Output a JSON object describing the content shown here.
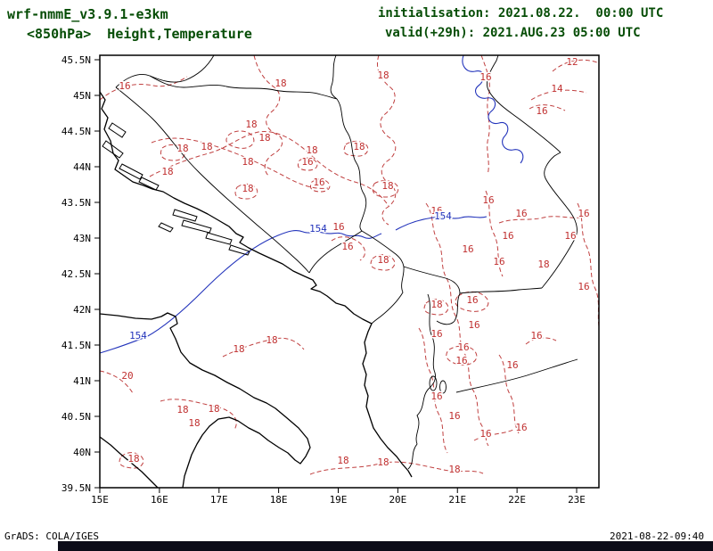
{
  "header": {
    "model_title": "wrf-nmmE_v3.9.1-e3km",
    "field_title": "<850hPa>  Height,Temperature",
    "init_line": "initialisation: 2021.08.22.  00:00 UTC",
    "valid_line": "valid(+29h): 2021.AUG.23 05:00 UTC"
  },
  "footer": {
    "left": "GrADS: COLA/IGES",
    "right": "2021-08-22-09:40"
  },
  "colors": {
    "header_text": "#064d06",
    "temperature_contour": "#c03030",
    "height_contour": "#2233bb",
    "bottom_bar": "#0b0b18"
  },
  "axes": {
    "y_ticks": [
      "45.5N",
      "45N",
      "44.5N",
      "44N",
      "43.5N",
      "43N",
      "42.5N",
      "42N",
      "41.5N",
      "41N",
      "40.5N",
      "40N",
      "39.5N"
    ],
    "x_ticks": [
      "15E",
      "16E",
      "17E",
      "18E",
      "19E",
      "20E",
      "21E",
      "22E",
      "23E"
    ]
  },
  "chart_data": {
    "type": "contour-map",
    "model": "wrf-nmmE_v3.9.1-e3km",
    "field": "850hPa Height and Temperature",
    "init_time": "2021.08.22 00:00 UTC",
    "valid_time": "2021.AUG.23 05:00 UTC (+29h)",
    "lon_range": [
      "15E",
      "23E"
    ],
    "lat_range": [
      "39.5N",
      "45.5N"
    ],
    "temperature_contours": {
      "style": "red dashed",
      "levels_c": [
        12,
        14,
        16,
        18,
        20
      ]
    },
    "height_contours": {
      "style": "blue solid",
      "levels_dam": [
        154
      ]
    },
    "labels": [
      {
        "t": "16",
        "x": 140,
        "y": 100,
        "k": "temp"
      },
      {
        "t": "18",
        "x": 315,
        "y": 97,
        "k": "temp"
      },
      {
        "t": "18",
        "x": 430,
        "y": 88,
        "k": "temp"
      },
      {
        "t": "16",
        "x": 545,
        "y": 90,
        "k": "temp"
      },
      {
        "t": "12",
        "x": 642,
        "y": 73,
        "k": "temp"
      },
      {
        "t": "14",
        "x": 625,
        "y": 103,
        "k": "temp"
      },
      {
        "t": "16",
        "x": 608,
        "y": 128,
        "k": "temp"
      },
      {
        "t": "18",
        "x": 282,
        "y": 143,
        "k": "temp"
      },
      {
        "t": "18",
        "x": 297,
        "y": 158,
        "k": "temp"
      },
      {
        "t": "18",
        "x": 205,
        "y": 170,
        "k": "temp"
      },
      {
        "t": "18",
        "x": 232,
        "y": 168,
        "k": "temp"
      },
      {
        "t": "18",
        "x": 350,
        "y": 172,
        "k": "temp"
      },
      {
        "t": "18",
        "x": 403,
        "y": 168,
        "k": "temp"
      },
      {
        "t": "18",
        "x": 278,
        "y": 185,
        "k": "temp"
      },
      {
        "t": "16",
        "x": 345,
        "y": 185,
        "k": "temp"
      },
      {
        "t": "18",
        "x": 188,
        "y": 196,
        "k": "temp"
      },
      {
        "t": "16",
        "x": 358,
        "y": 208,
        "k": "temp"
      },
      {
        "t": "18",
        "x": 435,
        "y": 212,
        "k": "temp"
      },
      {
        "t": "18",
        "x": 278,
        "y": 215,
        "k": "temp"
      },
      {
        "t": "16",
        "x": 548,
        "y": 228,
        "k": "temp"
      },
      {
        "t": "16",
        "x": 490,
        "y": 240,
        "k": "temp"
      },
      {
        "t": "16",
        "x": 585,
        "y": 243,
        "k": "temp"
      },
      {
        "t": "16",
        "x": 655,
        "y": 243,
        "k": "temp"
      },
      {
        "t": "16",
        "x": 380,
        "y": 258,
        "k": "temp"
      },
      {
        "t": "16",
        "x": 570,
        "y": 268,
        "k": "temp"
      },
      {
        "t": "16",
        "x": 640,
        "y": 268,
        "k": "temp"
      },
      {
        "t": "16",
        "x": 525,
        "y": 283,
        "k": "temp"
      },
      {
        "t": "16",
        "x": 390,
        "y": 280,
        "k": "temp"
      },
      {
        "t": "18",
        "x": 430,
        "y": 295,
        "k": "temp"
      },
      {
        "t": "16",
        "x": 560,
        "y": 297,
        "k": "temp"
      },
      {
        "t": "18",
        "x": 610,
        "y": 300,
        "k": "temp"
      },
      {
        "t": "16",
        "x": 655,
        "y": 325,
        "k": "temp"
      },
      {
        "t": "16",
        "x": 530,
        "y": 340,
        "k": "temp"
      },
      {
        "t": "18",
        "x": 490,
        "y": 345,
        "k": "temp"
      },
      {
        "t": "16",
        "x": 532,
        "y": 368,
        "k": "temp"
      },
      {
        "t": "16",
        "x": 490,
        "y": 378,
        "k": "temp"
      },
      {
        "t": "16",
        "x": 602,
        "y": 380,
        "k": "temp"
      },
      {
        "t": "18",
        "x": 305,
        "y": 385,
        "k": "temp"
      },
      {
        "t": "18",
        "x": 268,
        "y": 395,
        "k": "temp"
      },
      {
        "t": "16",
        "x": 520,
        "y": 393,
        "k": "temp"
      },
      {
        "t": "16",
        "x": 518,
        "y": 408,
        "k": "temp"
      },
      {
        "t": "16",
        "x": 575,
        "y": 413,
        "k": "temp"
      },
      {
        "t": "20",
        "x": 143,
        "y": 425,
        "k": "temp"
      },
      {
        "t": "16",
        "x": 490,
        "y": 448,
        "k": "temp"
      },
      {
        "t": "18",
        "x": 205,
        "y": 463,
        "k": "temp"
      },
      {
        "t": "18",
        "x": 240,
        "y": 462,
        "k": "temp"
      },
      {
        "t": "16",
        "x": 510,
        "y": 470,
        "k": "temp"
      },
      {
        "t": "18",
        "x": 218,
        "y": 478,
        "k": "temp"
      },
      {
        "t": "16",
        "x": 585,
        "y": 483,
        "k": "temp"
      },
      {
        "t": "16",
        "x": 545,
        "y": 490,
        "k": "temp"
      },
      {
        "t": "18",
        "x": 150,
        "y": 518,
        "k": "temp"
      },
      {
        "t": "18",
        "x": 385,
        "y": 520,
        "k": "temp"
      },
      {
        "t": "18",
        "x": 430,
        "y": 522,
        "k": "temp"
      },
      {
        "t": "18",
        "x": 510,
        "y": 530,
        "k": "temp"
      },
      {
        "t": "154",
        "x": 155,
        "y": 380,
        "k": "hgt"
      },
      {
        "t": "154",
        "x": 357,
        "y": 260,
        "k": "hgt"
      },
      {
        "t": "154",
        "x": 497,
        "y": 246,
        "k": "hgt"
      }
    ]
  }
}
